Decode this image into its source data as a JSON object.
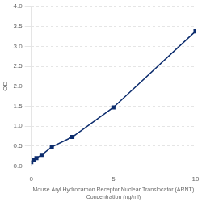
{
  "chart_data": {
    "type": "line",
    "xlabel": "Mouse Aryl Hydrocarbon Receptor Nuclear Translocator (ARNT)\nConcentration (ng/ml)",
    "ylabel": "OD",
    "x": [
      0,
      0.156,
      0.313,
      0.625,
      1.25,
      2.5,
      5,
      10
    ],
    "series": [
      {
        "values": [
          0.1,
          0.15,
          0.2,
          0.28,
          0.48,
          0.73,
          1.47,
          3.38
        ],
        "color": "#0d2d6e",
        "marker": "square"
      }
    ],
    "xlim": [
      0,
      10
    ],
    "ylim": [
      0,
      4
    ],
    "xticks": [
      0,
      5,
      10
    ],
    "yticks": [
      {
        "value": 0,
        "label": "0.0"
      },
      0.5,
      {
        "value": 1.0,
        "label": "1.0"
      },
      1.5,
      {
        "value": 2.0,
        "label": "2.0"
      },
      2.5,
      {
        "value": 3.0,
        "label": "3.0"
      },
      3.5,
      {
        "value": 4.0,
        "label": "4.0"
      }
    ],
    "grid": "y"
  }
}
